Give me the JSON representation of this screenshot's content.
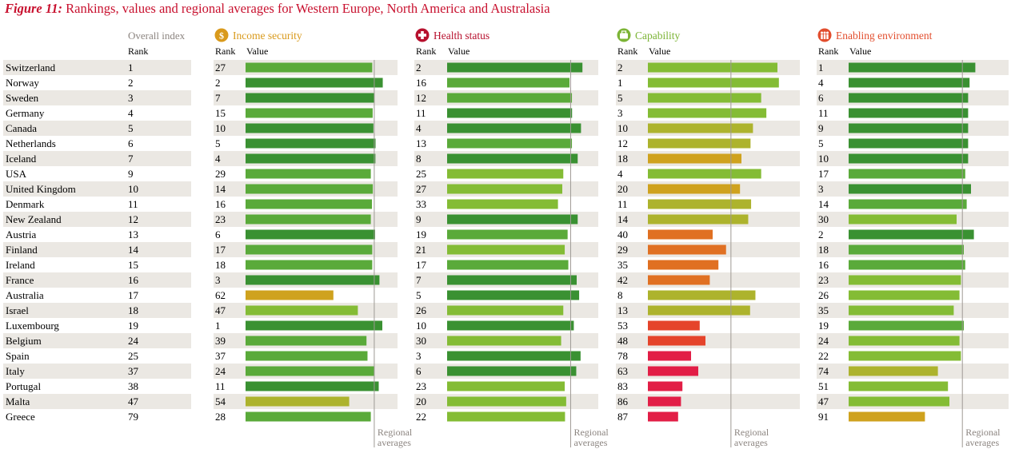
{
  "title": {
    "figure": "Figure 11:",
    "text": "Rankings, values and regional averages for Western Europe, North America and Australasia"
  },
  "header": {
    "overall": "Overall index",
    "rank": "Rank",
    "value": "Value"
  },
  "footer_label": [
    "Regional",
    "averages"
  ],
  "colors": {
    "dark_green": "#3a9132",
    "mid_green": "#5aaa3a",
    "light_green": "#84bc35",
    "olive": "#adb32d",
    "mustard": "#cfa21e",
    "orange": "#e07022",
    "red_orange": "#e5442b",
    "red": "#e21e46",
    "title_red": "#c8102e",
    "row_band": "#ebe8e3",
    "avg_line": "#9e9994",
    "header_grey": "#8c8580"
  },
  "chart_data": {
    "type": "table",
    "countries": [
      "Switzerland",
      "Norway",
      "Sweden",
      "Germany",
      "Canada",
      "Netherlands",
      "Iceland",
      "USA",
      "United Kingdom",
      "Denmark",
      "New Zealand",
      "Austria",
      "Finland",
      "Ireland",
      "France",
      "Australia",
      "Israel",
      "Luxembourg",
      "Belgium",
      "Spain",
      "Italy",
      "Portugal",
      "Malta",
      "Greece"
    ],
    "overall_rank": [
      1,
      2,
      3,
      4,
      5,
      6,
      7,
      9,
      10,
      11,
      12,
      13,
      14,
      15,
      16,
      17,
      18,
      19,
      24,
      25,
      37,
      38,
      47,
      79
    ],
    "domains": [
      {
        "name": "Income security",
        "icon": "dollar-icon",
        "color": "#d99a1c",
        "ranks": [
          27,
          2,
          7,
          15,
          10,
          5,
          4,
          29,
          14,
          16,
          23,
          6,
          17,
          18,
          3,
          62,
          47,
          1,
          39,
          37,
          24,
          11,
          54,
          28
        ],
        "values": [
          0.88,
          0.953,
          0.895,
          0.883,
          0.888,
          0.903,
          0.902,
          0.87,
          0.884,
          0.878,
          0.87,
          0.9,
          0.88,
          0.88,
          0.93,
          0.61,
          0.78,
          0.95,
          0.84,
          0.847,
          0.893,
          0.925,
          0.72,
          0.87
        ],
        "regional_average": 0.894
      },
      {
        "name": "Health status",
        "icon": "cross-icon",
        "color": "#b7112e",
        "ranks": [
          2,
          16,
          12,
          11,
          4,
          13,
          8,
          25,
          27,
          33,
          9,
          19,
          21,
          17,
          7,
          5,
          26,
          10,
          30,
          3,
          6,
          23,
          20,
          22
        ],
        "values": [
          0.94,
          0.85,
          0.867,
          0.868,
          0.93,
          0.867,
          0.907,
          0.807,
          0.8,
          0.77,
          0.907,
          0.837,
          0.817,
          0.842,
          0.9,
          0.917,
          0.807,
          0.88,
          0.792,
          0.927,
          0.897,
          0.817,
          0.827,
          0.819
        ],
        "regional_average": 0.858
      },
      {
        "name": "Capability",
        "icon": "briefcase-icon",
        "color": "#7cb436",
        "ranks": [
          2,
          1,
          5,
          3,
          10,
          12,
          18,
          4,
          20,
          11,
          14,
          40,
          29,
          35,
          42,
          8,
          13,
          53,
          48,
          78,
          63,
          83,
          86,
          87
        ],
        "values": [
          0.9,
          0.91,
          0.787,
          0.823,
          0.73,
          0.713,
          0.65,
          0.787,
          0.64,
          0.717,
          0.697,
          0.45,
          0.543,
          0.49,
          0.43,
          0.747,
          0.71,
          0.36,
          0.4,
          0.3,
          0.35,
          0.24,
          0.23,
          0.21
        ],
        "regional_average": 0.577
      },
      {
        "name": "Enabling environment",
        "icon": "people-icon",
        "color": "#e24e2e",
        "ranks": [
          1,
          4,
          6,
          11,
          9,
          5,
          10,
          17,
          3,
          14,
          30,
          2,
          18,
          16,
          23,
          26,
          35,
          19,
          24,
          22,
          74,
          51,
          47,
          91
        ],
        "values": [
          0.88,
          0.84,
          0.83,
          0.83,
          0.83,
          0.83,
          0.83,
          0.81,
          0.85,
          0.82,
          0.75,
          0.87,
          0.8,
          0.81,
          0.78,
          0.77,
          0.73,
          0.8,
          0.77,
          0.78,
          0.62,
          0.69,
          0.7,
          0.53
        ],
        "regional_average": 0.79
      }
    ]
  }
}
